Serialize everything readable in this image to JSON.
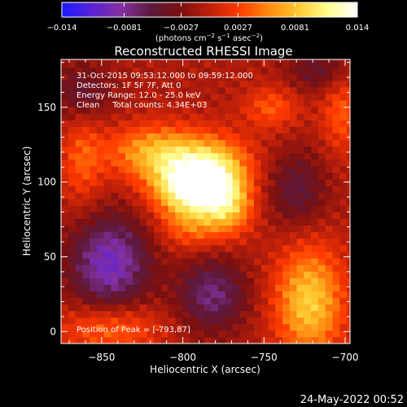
{
  "chart_data": {
    "type": "heatmap",
    "title": "Reconstructed RHESSI Image",
    "xlabel": "Heliocentric X (arcsec)",
    "ylabel": "Heliocentric Y (arcsec)",
    "xlim": [
      -875,
      -697
    ],
    "ylim": [
      -8,
      182
    ],
    "x_ticks": [
      -850,
      -800,
      -750,
      -700
    ],
    "x_tick_labels": [
      "−850",
      "−800",
      "−750",
      "−700"
    ],
    "y_ticks": [
      0,
      50,
      100,
      150
    ],
    "y_tick_labels": [
      "0",
      "50",
      "100",
      "150"
    ],
    "colorbar": {
      "range": [
        -0.014,
        0.014
      ],
      "ticks": [
        -0.014,
        -0.0081,
        -0.0027,
        0.0027,
        0.0081,
        0.014
      ],
      "tick_labels": [
        "−0.014",
        "−0.0081",
        "−0.0027",
        "0.0027",
        "0.0081",
        "0.014"
      ],
      "units_label": "(photons cm",
      "units_sup1": "−2",
      "units_mid": " s",
      "units_sup2": "−1",
      "units_end": " asec",
      "units_sup3": "−2",
      "units_close": ")",
      "colors": [
        "#1a1aff",
        "#5a22d6",
        "#8430a0",
        "#5c1a3e",
        "#7a1010",
        "#c0200a",
        "#ff3a00",
        "#ff8a10",
        "#ffc830",
        "#ffff90",
        "#ffffff"
      ]
    },
    "info_lines": [
      "31-Oct-2015 09:53:12.000 to 09:59:12.000",
      "Detectors: 1F 5F 7F, Att 0",
      "Energy Range: 12.0 - 25.0 keV",
      "Clean     Total counts: 4.34E+03"
    ],
    "peak_text": "Position of Peak = [-793,87]",
    "peak": {
      "x": -793,
      "y": 87,
      "value": 0.014
    },
    "sources": [
      {
        "x": -793,
        "y": 97,
        "amplitude": 0.0155,
        "sx": 17,
        "sy": 13
      },
      {
        "x": -815,
        "y": 120,
        "amplitude": 0.0085,
        "sx": 22,
        "sy": 13
      },
      {
        "x": -778,
        "y": 112,
        "amplitude": 0.006,
        "sx": 16,
        "sy": 14
      },
      {
        "x": -772,
        "y": 82,
        "amplitude": 0.007,
        "sx": 11,
        "sy": 13
      },
      {
        "x": -796,
        "y": 70,
        "amplitude": 0.0045,
        "sx": 13,
        "sy": 11
      },
      {
        "x": -722,
        "y": 20,
        "amplitude": 0.0095,
        "sx": 15,
        "sy": 26
      },
      {
        "x": -845,
        "y": 2,
        "amplitude": 0.0055,
        "sx": 22,
        "sy": 12
      },
      {
        "x": -862,
        "y": 115,
        "amplitude": 0.0042,
        "sx": 9,
        "sy": 22
      },
      {
        "x": -745,
        "y": 150,
        "amplitude": 0.0045,
        "sx": 12,
        "sy": 10
      },
      {
        "x": -702,
        "y": 148,
        "amplitude": 0.0045,
        "sx": 9,
        "sy": 20
      },
      {
        "x": -845,
        "y": 46,
        "amplitude": -0.009,
        "sx": 17,
        "sy": 22
      },
      {
        "x": -782,
        "y": 25,
        "amplitude": -0.0065,
        "sx": 15,
        "sy": 17
      },
      {
        "x": -862,
        "y": 160,
        "amplitude": -0.004,
        "sx": 13,
        "sy": 14
      },
      {
        "x": -730,
        "y": 95,
        "amplitude": -0.0045,
        "sx": 13,
        "sy": 18
      },
      {
        "x": -715,
        "y": 175,
        "amplitude": -0.004,
        "sx": 14,
        "sy": 11
      }
    ]
  },
  "footer_date": "24-May-2022 00:52"
}
